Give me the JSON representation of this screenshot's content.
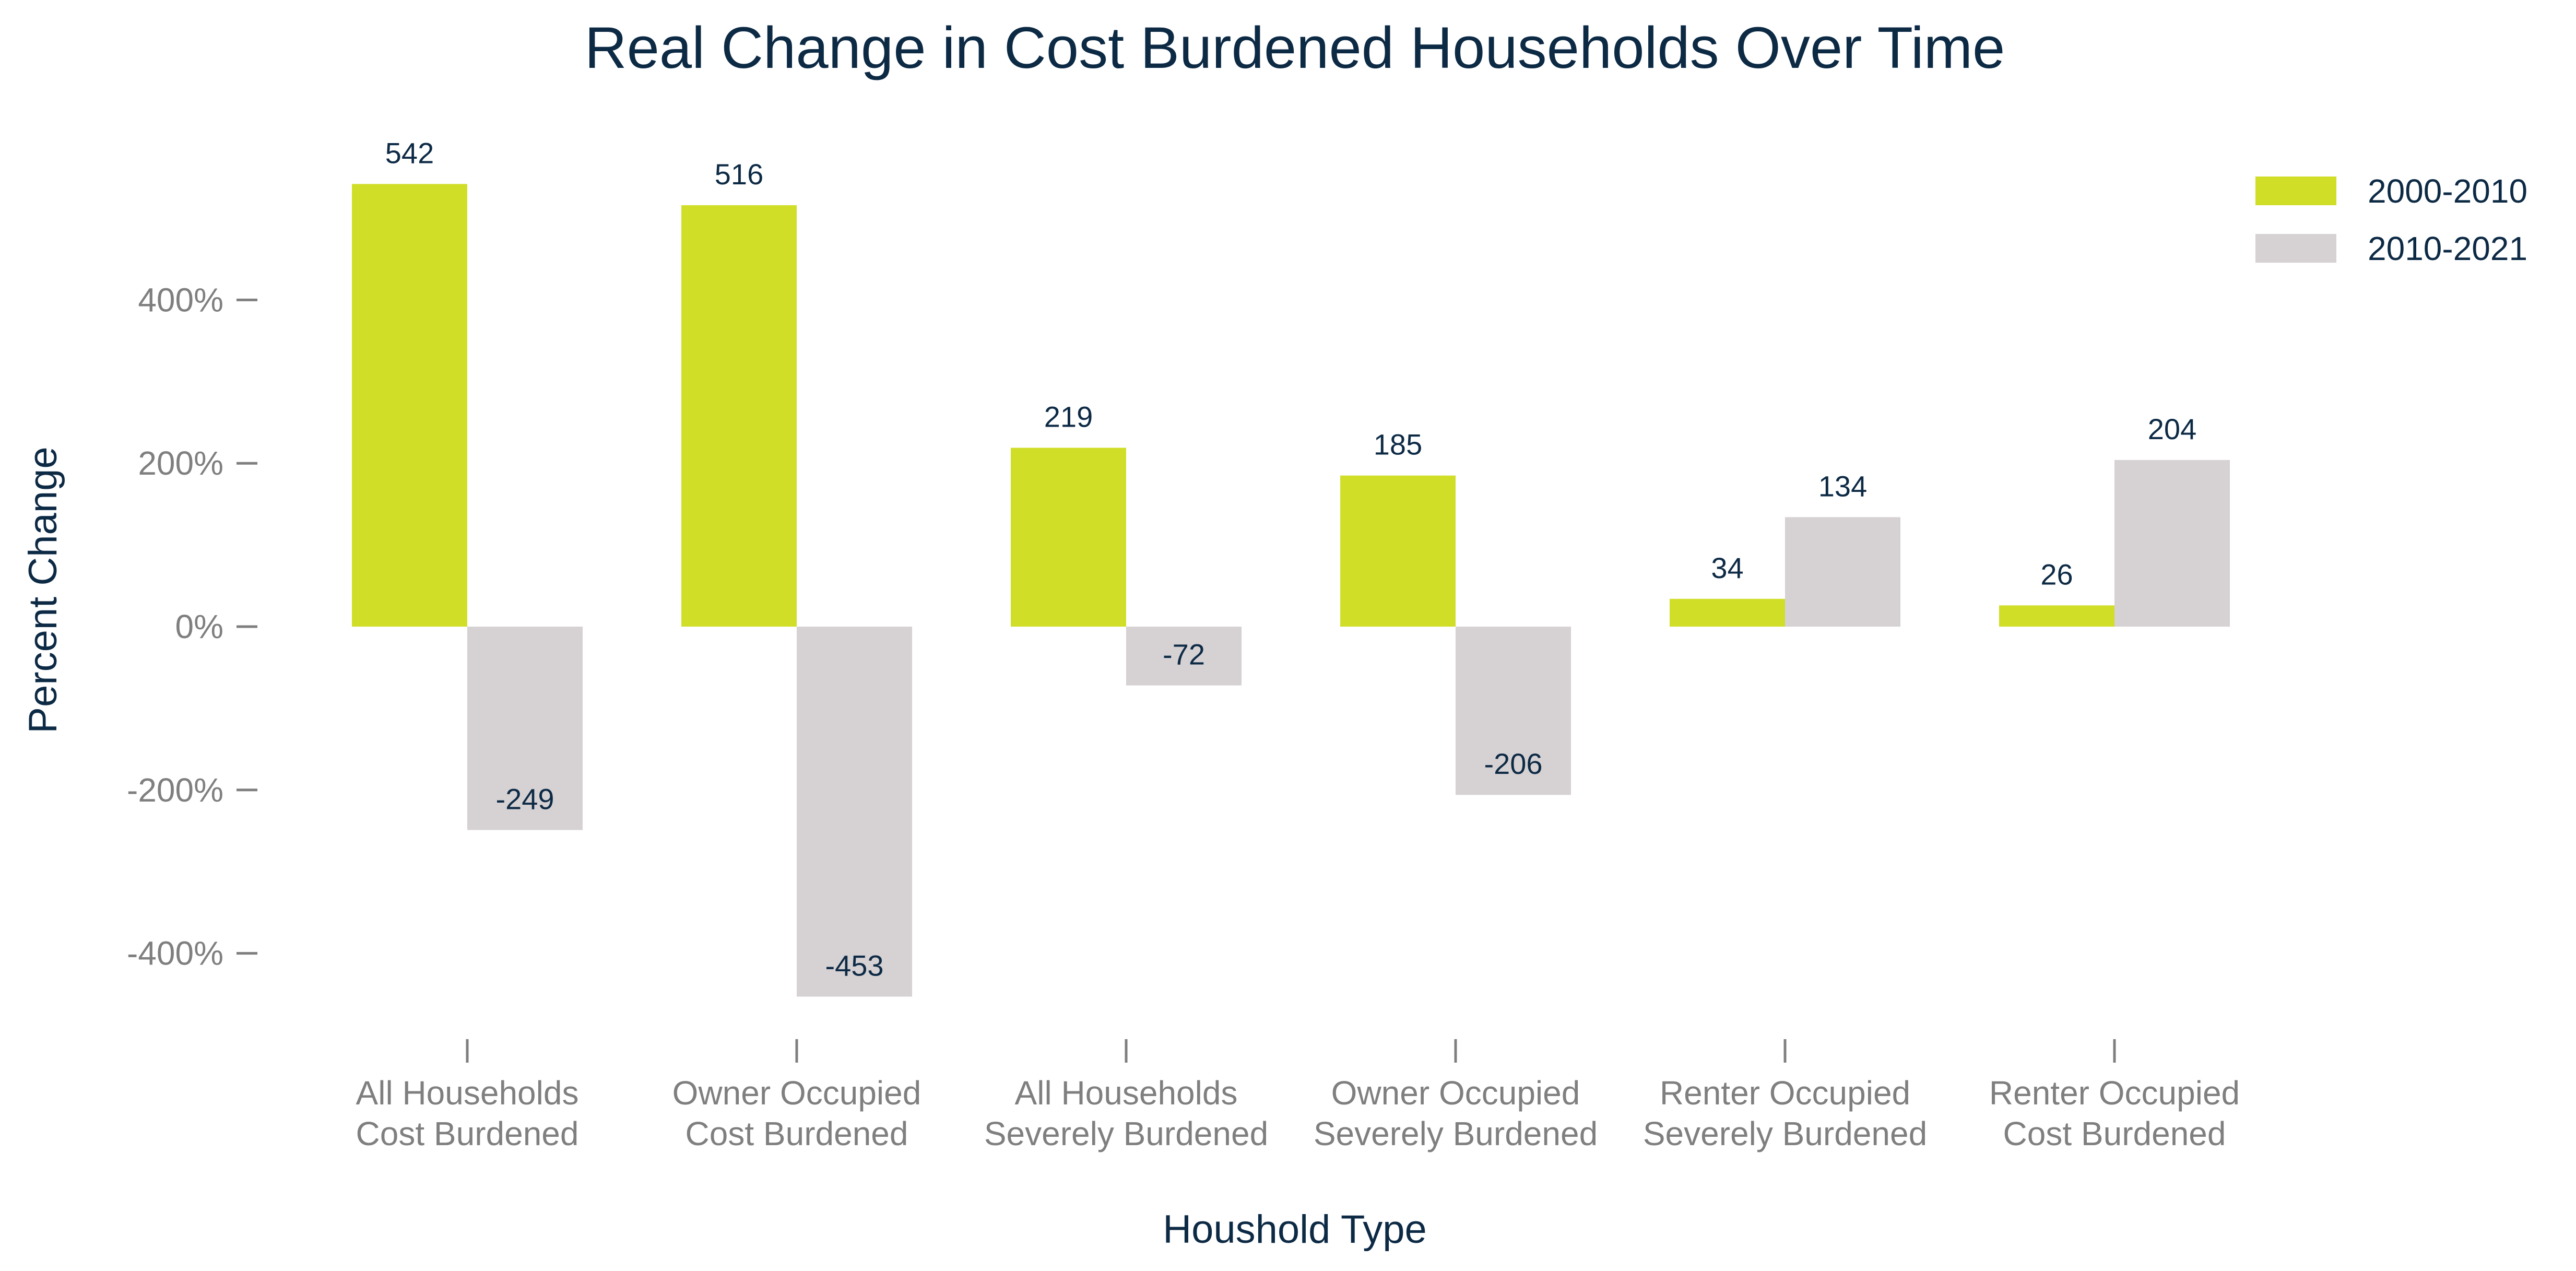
{
  "chart_data": {
    "type": "bar",
    "title": "Real Change in Cost Burdened Households Over Time",
    "xlabel": "Houshold Type",
    "ylabel": "Percent Change",
    "categories": [
      [
        "All Households",
        "Cost Burdened"
      ],
      [
        "Owner Occupied",
        "Cost Burdened"
      ],
      [
        "All Households",
        "Severely Burdened"
      ],
      [
        "Owner Occupied",
        "Severely Burdened"
      ],
      [
        "Renter Occupied",
        "Severely Burdened"
      ],
      [
        "Renter Occupied",
        "Cost Burdened"
      ]
    ],
    "series": [
      {
        "name": "2000-2010",
        "color": "#d0de28",
        "values": [
          542,
          516,
          219,
          185,
          34,
          26
        ]
      },
      {
        "name": "2010-2021",
        "color": "#d6d1d3",
        "values": [
          -249,
          -453,
          -72,
          -206,
          134,
          204
        ]
      }
    ],
    "ylim": [
      -500,
      600
    ],
    "yticks": [
      {
        "value": 400,
        "label": "400%"
      },
      {
        "value": 200,
        "label": "200%"
      },
      {
        "value": 0,
        "label": "0%"
      },
      {
        "value": -200,
        "label": "-200%"
      },
      {
        "value": -400,
        "label": "-400%"
      }
    ],
    "grid": false,
    "legend_position": "top-right",
    "colors": {
      "title": "#0d2a45",
      "tick": "#7f7f7f",
      "label": "#0d2a45"
    }
  }
}
